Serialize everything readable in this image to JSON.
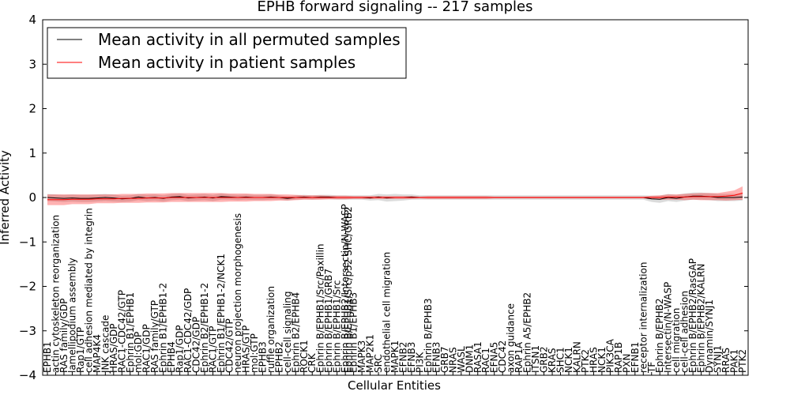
{
  "chart_data": {
    "type": "line",
    "title": "EPHB forward signaling -- 217 samples",
    "xlabel": "Cellular Entities",
    "ylabel": "Inferred Activity",
    "ylim": [
      -4,
      4
    ],
    "yticks": [
      "4",
      "3",
      "2",
      "1",
      "0",
      "−1",
      "−2",
      "−3",
      "−4"
    ],
    "legend_position": "top-left",
    "categories": [
      "EPHB1",
      "actin cytoskeleton reorganization",
      "RAS family/GDP",
      "lamellipodium assembly",
      "Rap1/GTP",
      "cell adhesion mediated by integrin",
      "MAP4K4",
      "JNK cascade",
      "HRAS/GDP",
      "RAC1-CDC42/GTP",
      "Ephrin B1/EPHB1",
      "mol:GDP",
      "RAC1/GDP",
      "RAS family/GTP",
      "Ephrin B1/EPHB1-2",
      "EPHB4",
      "Rap1/GDP",
      "RAC1-CDC42/GDP",
      "CDC42/GDP",
      "Ephrin B2/EPHB1-2",
      "RAC1/GTP",
      "Ephrin B1/EPHB1-2/NCK1",
      "CDC42/GTP",
      "neuron projection morphogenesis",
      "HRAS/GTP",
      "mol:GTP",
      "EPHB3",
      "ruffle organization",
      "EPHB2",
      "cell-cell signaling",
      "Ephrin B2/EPHB4",
      "ROCK1",
      "CRK",
      "Ephrin B/EPHB1/Src/Paxillin",
      "Ephrin B/EPHB1/GRB7",
      "Ephrin B/EPHB1/Src",
      "Ephrin B/EPHB2/Intersectin/N-WASP",
      "Ephrin B1/EPHB3",
      "MAPK3",
      "MAP2K1",
      "SRC",
      "endothelial cell migration",
      "MAPK1",
      "EFNB2",
      "EFNB3",
      "PI3K",
      "Ephrin B/EPHB3",
      "EFNB3",
      "GRB7",
      "NRAS",
      "WASL",
      "DNM1",
      "RASA1",
      "RAC1",
      "EFNA5",
      "CDC42",
      "axon guidance",
      "RAP1A",
      "Ephrin A5/EPHB2",
      "ITSN1",
      "GRB2",
      "KRAS",
      "SHC1",
      "NCK1",
      "KALRN",
      "PTK2",
      "HRAS",
      "NCK1",
      "PIK3CA",
      "RAP1B",
      "PXN",
      "EFNB1",
      "receptor internalization",
      "TF",
      "Ephrin B/EPHB2",
      "Intersectin/N-WASP",
      "cell migration",
      "cell-cell adhesion",
      "Ephrin B/EPHB2/RasGAP",
      "Ephrin B/EPHB2/KALRN",
      "Dynamin/SYNJ1",
      "SYNJ1",
      "RRAS",
      "PAK1",
      "PTK2"
    ],
    "extra_labels": [
      "Ephrin B/EPHB1/Src/p52 SHC/GRB2"
    ],
    "series": [
      {
        "name": "Mean activity in all permuted samples",
        "color": "#000000",
        "values": [
          0.0,
          -0.01,
          -0.02,
          -0.01,
          -0.02,
          -0.02,
          -0.01,
          0.0,
          -0.01,
          -0.03,
          -0.02,
          0.01,
          -0.01,
          0.0,
          -0.02,
          0.01,
          0.02,
          -0.01,
          0.0,
          0.01,
          -0.01,
          0.02,
          0.01,
          0.0,
          0.01,
          0.0,
          0.0,
          0.01,
          0.0,
          -0.02,
          0.0,
          0.01,
          0.0,
          0.01,
          0.01,
          0.0,
          0.0,
          0.0,
          0.0,
          -0.01,
          0.01,
          -0.01,
          0.0,
          0.0,
          0.01,
          0.0,
          0.0,
          0.0,
          0.0,
          0.0,
          0.0,
          0.0,
          0.0,
          0.0,
          0.0,
          0.0,
          0.0,
          0.0,
          0.0,
          0.0,
          0.0,
          0.0,
          0.0,
          0.0,
          0.0,
          0.0,
          0.0,
          0.0,
          0.0,
          0.0,
          0.0,
          0.0,
          0.0,
          -0.03,
          -0.04,
          0.0,
          -0.02,
          0.01,
          0.03,
          0.03,
          0.02,
          0.0,
          0.0,
          0.0,
          0.01
        ]
      },
      {
        "name": "Mean activity in patient samples",
        "color": "#ff0000",
        "values": [
          -0.05,
          -0.05,
          -0.05,
          -0.04,
          -0.04,
          -0.04,
          -0.03,
          -0.03,
          -0.03,
          -0.02,
          -0.02,
          -0.02,
          -0.01,
          -0.01,
          -0.01,
          0.0,
          0.0,
          0.0,
          0.0,
          0.0,
          0.0,
          0.0,
          0.0,
          0.0,
          0.0,
          0.0,
          0.0,
          0.0,
          0.0,
          0.0,
          0.0,
          0.0,
          0.0,
          0.0,
          0.0,
          0.0,
          0.0,
          0.0,
          0.0,
          0.0,
          0.0,
          0.0,
          0.0,
          0.0,
          0.0,
          0.0,
          0.0,
          0.0,
          0.0,
          0.0,
          0.0,
          0.0,
          0.0,
          0.0,
          0.0,
          0.0,
          0.0,
          0.0,
          0.0,
          0.0,
          0.0,
          0.0,
          0.0,
          0.0,
          0.0,
          0.0,
          0.0,
          0.0,
          0.0,
          0.0,
          0.0,
          0.0,
          0.0,
          0.0,
          0.0,
          0.01,
          0.01,
          0.01,
          0.02,
          0.02,
          0.02,
          0.02,
          0.03,
          0.05,
          0.1
        ],
        "band": [
          0.12,
          0.12,
          0.12,
          0.11,
          0.11,
          0.11,
          0.1,
          0.1,
          0.1,
          0.1,
          0.1,
          0.1,
          0.1,
          0.1,
          0.1,
          0.1,
          0.1,
          0.1,
          0.1,
          0.1,
          0.1,
          0.1,
          0.09,
          0.09,
          0.09,
          0.08,
          0.08,
          0.08,
          0.07,
          0.07,
          0.06,
          0.05,
          0.05,
          0.05,
          0.04,
          0.04,
          0.04,
          0.03,
          0.03,
          0.03,
          0.03,
          0.03,
          0.03,
          0.03,
          0.03,
          0.02,
          0.03,
          0.03,
          0.03,
          0.03,
          0.03,
          0.03,
          0.03,
          0.03,
          0.02,
          0.02,
          0.02,
          0.02,
          0.02,
          0.02,
          0.02,
          0.02,
          0.02,
          0.02,
          0.02,
          0.02,
          0.02,
          0.02,
          0.02,
          0.02,
          0.02,
          0.02,
          0.02,
          0.04,
          0.05,
          0.06,
          0.06,
          0.07,
          0.07,
          0.08,
          0.08,
          0.08,
          0.1,
          0.11,
          0.15
        ]
      }
    ],
    "grey_band": [
      0.08,
      0.08,
      0.08,
      0.08,
      0.08,
      0.08,
      0.08,
      0.08,
      0.08,
      0.07,
      0.07,
      0.07,
      0.07,
      0.07,
      0.07,
      0.07,
      0.07,
      0.07,
      0.07,
      0.07,
      0.07,
      0.07,
      0.06,
      0.06,
      0.06,
      0.06,
      0.06,
      0.06,
      0.05,
      0.05,
      0.05,
      0.05,
      0.05,
      0.05,
      0.05,
      0.05,
      0.05,
      0.05,
      0.05,
      0.06,
      0.07,
      0.08,
      0.08,
      0.07,
      0.06,
      0.05,
      0.05,
      0.05,
      0.05,
      0.05,
      0.05,
      0.05,
      0.05,
      0.05,
      0.05,
      0.05,
      0.05,
      0.05,
      0.05,
      0.05,
      0.05,
      0.05,
      0.05,
      0.05,
      0.05,
      0.05,
      0.05,
      0.05,
      0.05,
      0.05,
      0.05,
      0.05,
      0.05,
      0.07,
      0.08,
      0.08,
      0.08,
      0.08,
      0.08,
      0.08,
      0.08,
      0.08,
      0.08,
      0.08,
      0.08
    ]
  }
}
